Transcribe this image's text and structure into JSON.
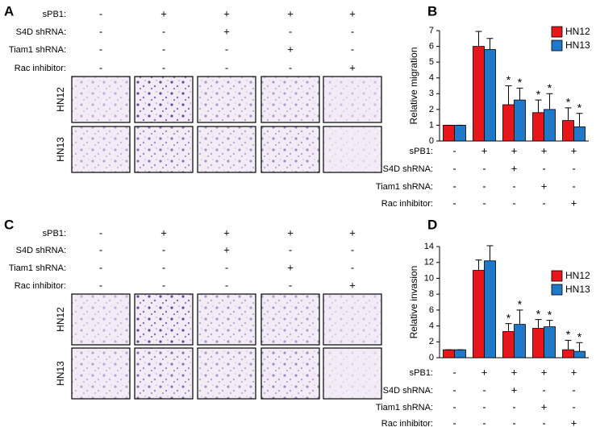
{
  "panels": [
    {
      "label": "A",
      "cell_lines": [
        "HN12",
        "HN13"
      ],
      "treatments": [
        {
          "label": "sPB1:",
          "signs": [
            "-",
            "+",
            "+",
            "+",
            "+"
          ]
        },
        {
          "label": "S4D shRNA:",
          "signs": [
            "-",
            "-",
            "+",
            "-",
            "-"
          ]
        },
        {
          "label": "Tiam1 shRNA:",
          "signs": [
            "-",
            "-",
            "-",
            "+",
            "-"
          ]
        },
        {
          "label": "Rac inhibitor:",
          "signs": [
            "-",
            "-",
            "-",
            "-",
            "+"
          ]
        }
      ]
    },
    {
      "label": "B"
    },
    {
      "label": "C",
      "cell_lines": [
        "HN12",
        "HN13"
      ],
      "treatments": [
        {
          "label": "sPB1:",
          "signs": [
            "-",
            "+",
            "+",
            "+",
            "+"
          ]
        },
        {
          "label": "S4D shRNA:",
          "signs": [
            "-",
            "-",
            "+",
            "-",
            "-"
          ]
        },
        {
          "label": "Tiam1 shRNA:",
          "signs": [
            "-",
            "-",
            "-",
            "+",
            "-"
          ]
        },
        {
          "label": "Rac inhibitor:",
          "signs": [
            "-",
            "-",
            "-",
            "-",
            "+"
          ]
        }
      ]
    },
    {
      "label": "D"
    }
  ],
  "chart_data": [
    {
      "type": "bar",
      "ylabel": "Relative migration",
      "categories": [
        null,
        null,
        null,
        null,
        null
      ],
      "ylim": [
        0,
        7
      ],
      "yticks": [
        0,
        1,
        2,
        3,
        4,
        5,
        6,
        7
      ],
      "series": [
        {
          "name": "HN12",
          "color": "#e8151b",
          "values": [
            1.0,
            6.0,
            2.3,
            1.8,
            1.3
          ],
          "errors": [
            0,
            0.95,
            1.2,
            0.8,
            0.8
          ],
          "significance": [
            null,
            null,
            "*",
            "*",
            "*"
          ]
        },
        {
          "name": "HN13",
          "color": "#1f78c8",
          "values": [
            1.0,
            5.8,
            2.6,
            2.0,
            0.9
          ],
          "errors": [
            0,
            0.7,
            0.75,
            1.0,
            0.85
          ],
          "significance": [
            null,
            null,
            "*",
            "*",
            "*"
          ]
        }
      ],
      "treatments": [
        {
          "label": "sPB1:",
          "signs": [
            "-",
            "+",
            "+",
            "+",
            "+"
          ]
        },
        {
          "label": "S4D shRNA:",
          "signs": [
            "-",
            "-",
            "+",
            "-",
            "-"
          ]
        },
        {
          "label": "Tiam1 shRNA:",
          "signs": [
            "-",
            "-",
            "-",
            "+",
            "-"
          ]
        },
        {
          "label": "Rac inhibitor:",
          "signs": [
            "-",
            "-",
            "-",
            "-",
            "+"
          ]
        }
      ]
    },
    {
      "type": "bar",
      "ylabel": "Relative invasion",
      "categories": [
        null,
        null,
        null,
        null,
        null
      ],
      "ylim": [
        0,
        14
      ],
      "yticks": [
        0,
        2,
        4,
        6,
        8,
        10,
        12,
        14
      ],
      "series": [
        {
          "name": "HN12",
          "color": "#e8151b",
          "values": [
            1.0,
            11.0,
            3.3,
            3.7,
            1.0
          ],
          "errors": [
            0,
            1.3,
            1.0,
            1.1,
            1.2
          ],
          "significance": [
            null,
            null,
            "*",
            "*",
            "*"
          ]
        },
        {
          "name": "HN13",
          "color": "#1f78c8",
          "values": [
            1.0,
            12.2,
            4.2,
            3.9,
            0.8
          ],
          "errors": [
            0,
            1.9,
            1.8,
            0.8,
            1.1
          ],
          "significance": [
            null,
            null,
            "*",
            "*",
            "*"
          ]
        }
      ],
      "treatments": [
        {
          "label": "sPB1:",
          "signs": [
            "-",
            "+",
            "+",
            "+",
            "+"
          ]
        },
        {
          "label": "S4D shRNA:",
          "signs": [
            "-",
            "-",
            "+",
            "-",
            "-"
          ]
        },
        {
          "label": "Tiam1 shRNA:",
          "signs": [
            "-",
            "-",
            "-",
            "+",
            "-"
          ]
        },
        {
          "label": "Rac inhibitor:",
          "signs": [
            "-",
            "-",
            "-",
            "-",
            "+"
          ]
        }
      ]
    }
  ]
}
